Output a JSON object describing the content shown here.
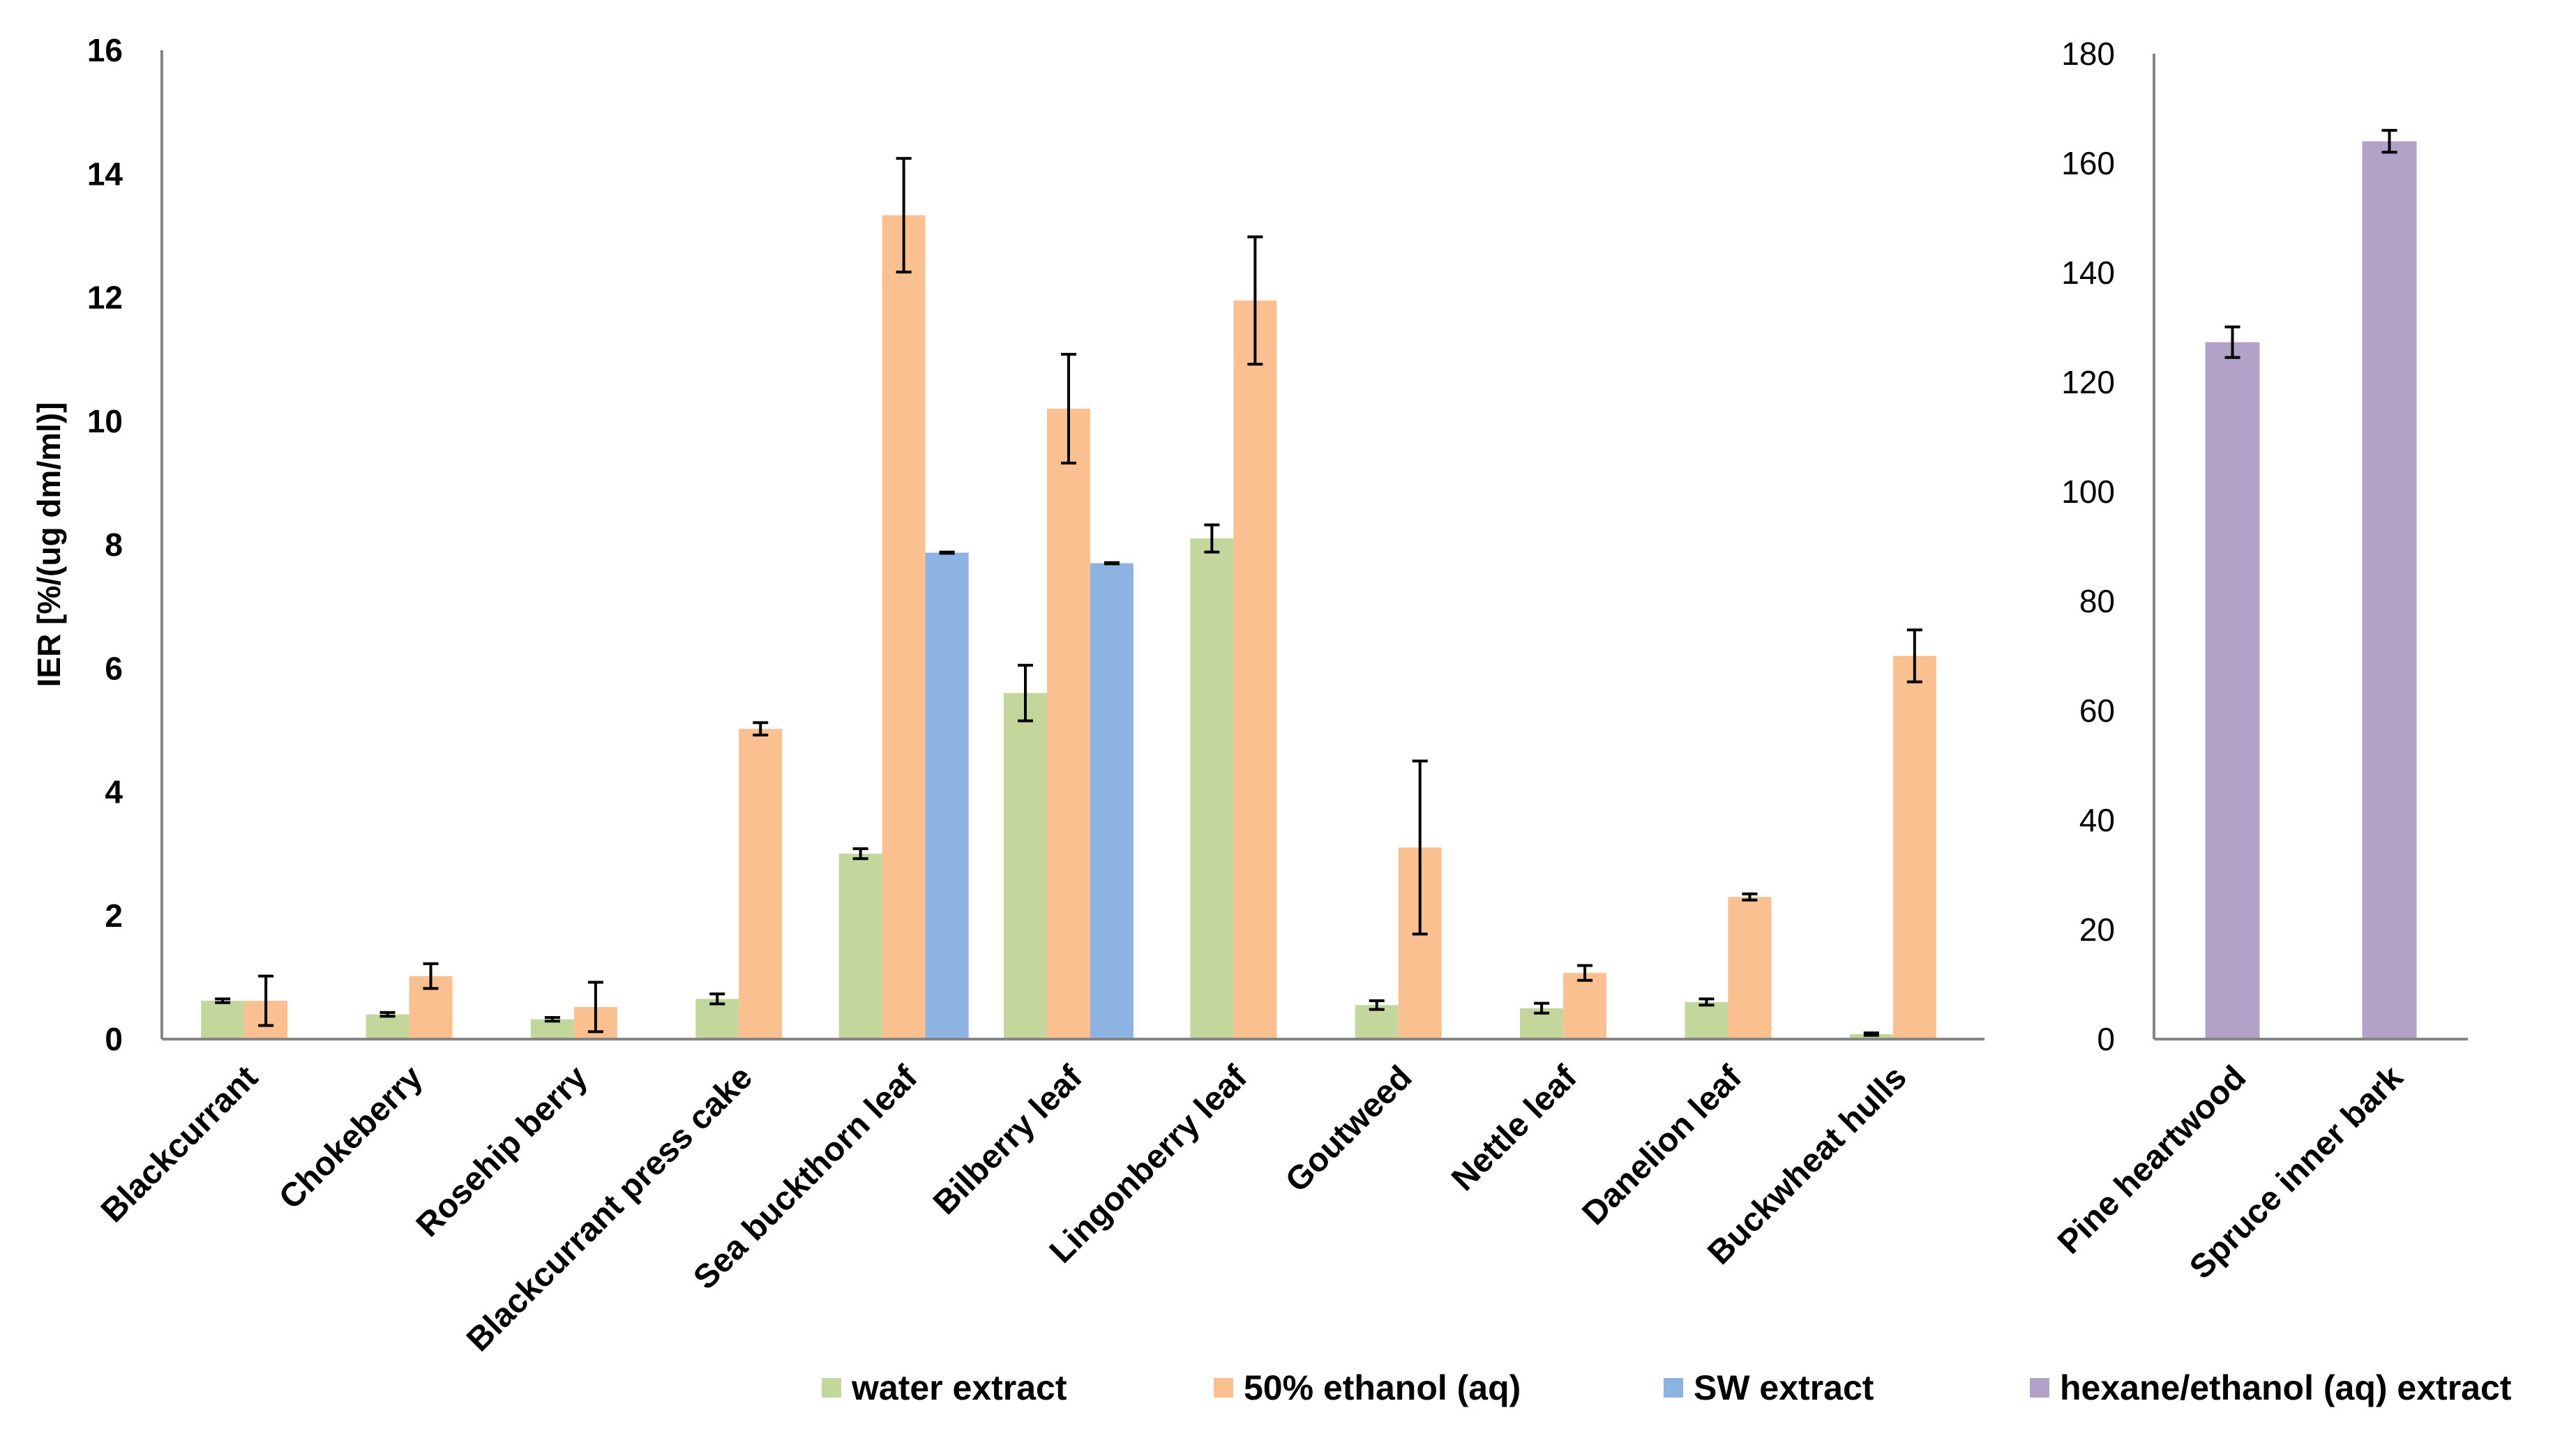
{
  "colors": {
    "water": "#c3d69b",
    "ethanol": "#fac090",
    "sw": "#8db3e2",
    "hexane": "#b3a2c7",
    "axis": "#868686"
  },
  "chart_data": [
    {
      "type": "bar",
      "title": "",
      "xlabel": "",
      "ylabel": "IER [%/(ug dm/ml)]",
      "ylim": [
        0,
        16
      ],
      "yticks": [
        "0",
        "2",
        "4",
        "6",
        "8",
        "10",
        "12",
        "14",
        "16"
      ],
      "categories": [
        "Blackcurrant",
        "Chokeberry",
        "Rosehip berry",
        "Blackcurrant press cake",
        "Sea buckthorn leaf",
        "Bilberry leaf",
        "Lingonberry leaf",
        "Goutweed",
        "Nettle leaf",
        "Danelion leaf",
        "Buckwheat hulls"
      ],
      "series": [
        {
          "key": "water",
          "name": "water extract",
          "values": [
            0.62,
            0.4,
            0.32,
            0.65,
            3.0,
            5.6,
            8.1,
            0.55,
            0.5,
            0.6,
            0.08
          ],
          "errors": [
            0.03,
            0.03,
            0.03,
            0.08,
            0.08,
            0.45,
            0.22,
            0.07,
            0.08,
            0.05,
            0.02
          ]
        },
        {
          "key": "ethanol",
          "name": "50% ethanol (aq)",
          "values": [
            0.62,
            1.02,
            0.52,
            5.02,
            13.33,
            10.2,
            11.95,
            3.1,
            1.07,
            2.3,
            6.2
          ],
          "errors": [
            0.4,
            0.2,
            0.4,
            0.1,
            0.92,
            0.88,
            1.03,
            1.4,
            0.12,
            0.05,
            0.42
          ]
        },
        {
          "key": "sw",
          "name": "SW extract",
          "values": [
            null,
            null,
            null,
            null,
            7.87,
            7.7,
            null,
            null,
            null,
            null,
            null
          ],
          "errors": [
            null,
            null,
            null,
            null,
            0.01,
            0.01,
            null,
            null,
            null,
            null,
            null
          ]
        }
      ]
    },
    {
      "type": "bar",
      "title": "",
      "xlabel": "",
      "ylabel": "",
      "ylim": [
        0,
        180
      ],
      "yticks": [
        "0",
        "20",
        "40",
        "60",
        "80",
        "100",
        "120",
        "140",
        "160",
        "180"
      ],
      "categories": [
        "Pine heartwood",
        "Spruce inner bark"
      ],
      "series": [
        {
          "key": "hexane",
          "name": "hexane/ethanol (aq) extract",
          "values": [
            127.3,
            164.0
          ],
          "errors": [
            2.8,
            2.0
          ]
        }
      ]
    }
  ],
  "legend": [
    {
      "key": "water",
      "label": "water extract"
    },
    {
      "key": "ethanol",
      "label": "50% ethanol (aq)"
    },
    {
      "key": "sw",
      "label": "SW extract"
    },
    {
      "key": "hexane",
      "label": "hexane/ethanol (aq) extract"
    }
  ]
}
